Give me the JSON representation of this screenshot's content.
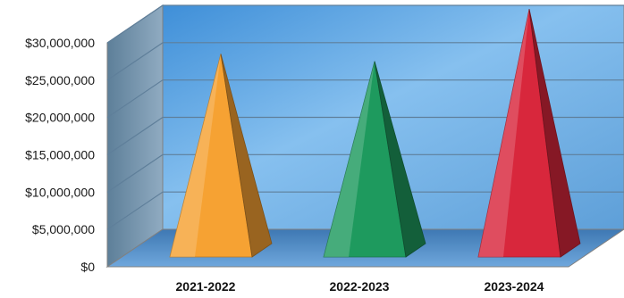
{
  "chart_data": {
    "type": "bar",
    "style": "3d-pyramid",
    "categories": [
      "2021-2022",
      "2022-2023",
      "2023-2024"
    ],
    "values": [
      23500000,
      22500000,
      29500000
    ],
    "ylim": [
      0,
      30000000
    ],
    "yticks": [
      {
        "value": 0,
        "label": "$0"
      },
      {
        "value": 5000000,
        "label": "$5,000,000"
      },
      {
        "value": 10000000,
        "label": "$10,000,000"
      },
      {
        "value": 15000000,
        "label": "$15,000,000"
      },
      {
        "value": 20000000,
        "label": "$20,000,000"
      },
      {
        "value": 25000000,
        "label": "$25,000,000"
      },
      {
        "value": 30000000,
        "label": "$30,000,000"
      }
    ],
    "grid": true,
    "legend": "none",
    "colors": {
      "bars": [
        "#f6a233",
        "#1e9a5e",
        "#d8273c"
      ],
      "wall": "#73b0e6",
      "floor": "#4b88c2",
      "side_wall": "#6f8fa9"
    }
  }
}
